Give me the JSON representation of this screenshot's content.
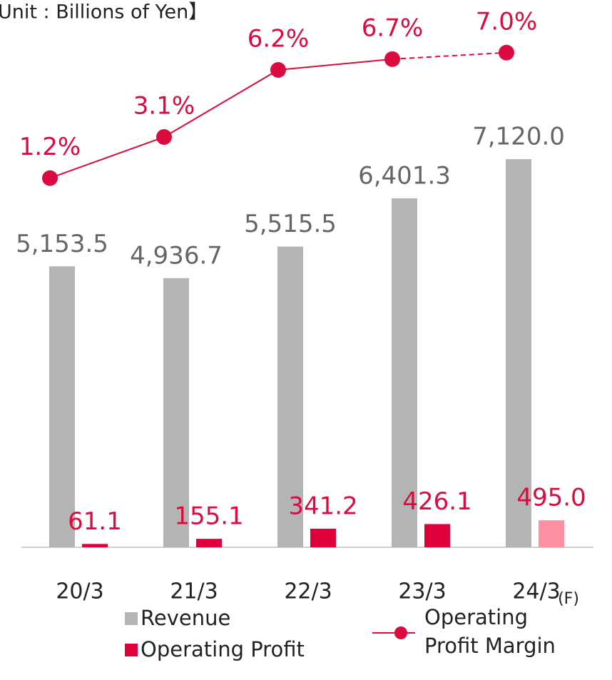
{
  "chart_data": {
    "type": "bar",
    "title": "【Unit : Billions of Yen】",
    "categories": [
      "20/3",
      "21/3",
      "22/3",
      "23/3",
      "24/3"
    ],
    "annotation": "(F)",
    "ylim": [
      0,
      7500
    ],
    "y2lim": [
      0,
      9.4
    ],
    "series": [
      {
        "name": "Revenue",
        "color": "#b4b4b4",
        "values": [
          5153.5,
          4936.7,
          5515.5,
          6401.3,
          7120.0
        ],
        "value_labels": [
          "5,153.5",
          "4,936.7",
          "5,515.5",
          "6,401.3",
          "7,120.0"
        ]
      },
      {
        "name": "Operating Profit",
        "color": "#e0003c",
        "point_colors": [
          "#e0003c",
          "#e0003c",
          "#e0003c",
          "#e0003c",
          "#ff8fa3"
        ],
        "values": [
          61.1,
          155.1,
          341.2,
          426.1,
          495.0
        ],
        "value_labels": [
          "61.1",
          "155.1",
          "341.2",
          "426.1",
          "495.0"
        ]
      },
      {
        "name": "Operating Profit Margin",
        "type": "line",
        "axis": "y2",
        "color": "#dc0b3f",
        "values": [
          1.2,
          3.1,
          6.2,
          6.7,
          7.0
        ],
        "value_labels": [
          "1.2%",
          "3.1%",
          "6.2%",
          "6.7%",
          "7.0%"
        ],
        "segment_dashed": [
          false,
          false,
          false,
          true
        ]
      }
    ]
  }
}
